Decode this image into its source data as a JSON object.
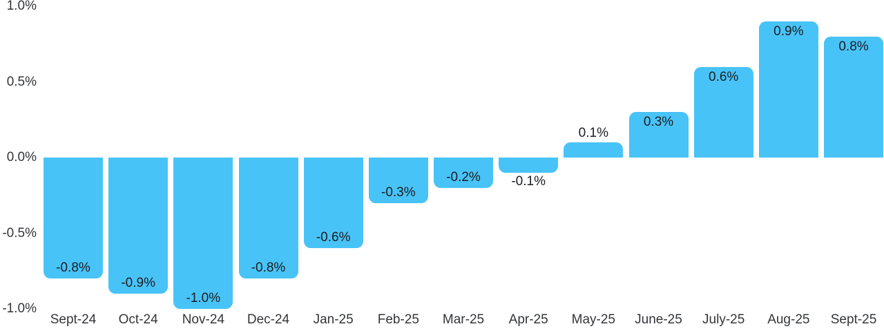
{
  "chart_data": {
    "type": "bar",
    "title": "",
    "xlabel": "",
    "ylabel": "",
    "categories": [
      "Sept-24",
      "Oct-24",
      "Nov-24",
      "Dec-24",
      "Jan-25",
      "Feb-25",
      "Mar-25",
      "Apr-25",
      "May-25",
      "June-25",
      "July-25",
      "Aug-25",
      "Sept-25"
    ],
    "values": [
      -0.8,
      -0.9,
      -1.0,
      -0.8,
      -0.6,
      -0.3,
      -0.2,
      -0.1,
      0.1,
      0.3,
      0.6,
      0.9,
      0.8
    ],
    "value_labels": [
      "-0.8%",
      "-0.9%",
      "-1.0%",
      "-0.8%",
      "-0.6%",
      "-0.3%",
      "-0.2%",
      "-0.1%",
      "0.1%",
      "0.3%",
      "0.6%",
      "0.9%",
      "0.8%"
    ],
    "y_ticks": [
      {
        "label": "1.0%",
        "value": 1.0
      },
      {
        "label": "0.5%",
        "value": 0.5
      },
      {
        "label": "0.0%",
        "value": 0.0
      },
      {
        "label": "-0.5%",
        "value": -0.5
      },
      {
        "label": "-1.0%",
        "value": -1.0
      }
    ],
    "ylim": [
      -1.0,
      1.0
    ],
    "grid": false,
    "legend": "none",
    "bar_color": "#48C3F7",
    "value_label_color": "#1b1d21",
    "axis_label_color": "#333538",
    "background": "#FFFFFF"
  }
}
